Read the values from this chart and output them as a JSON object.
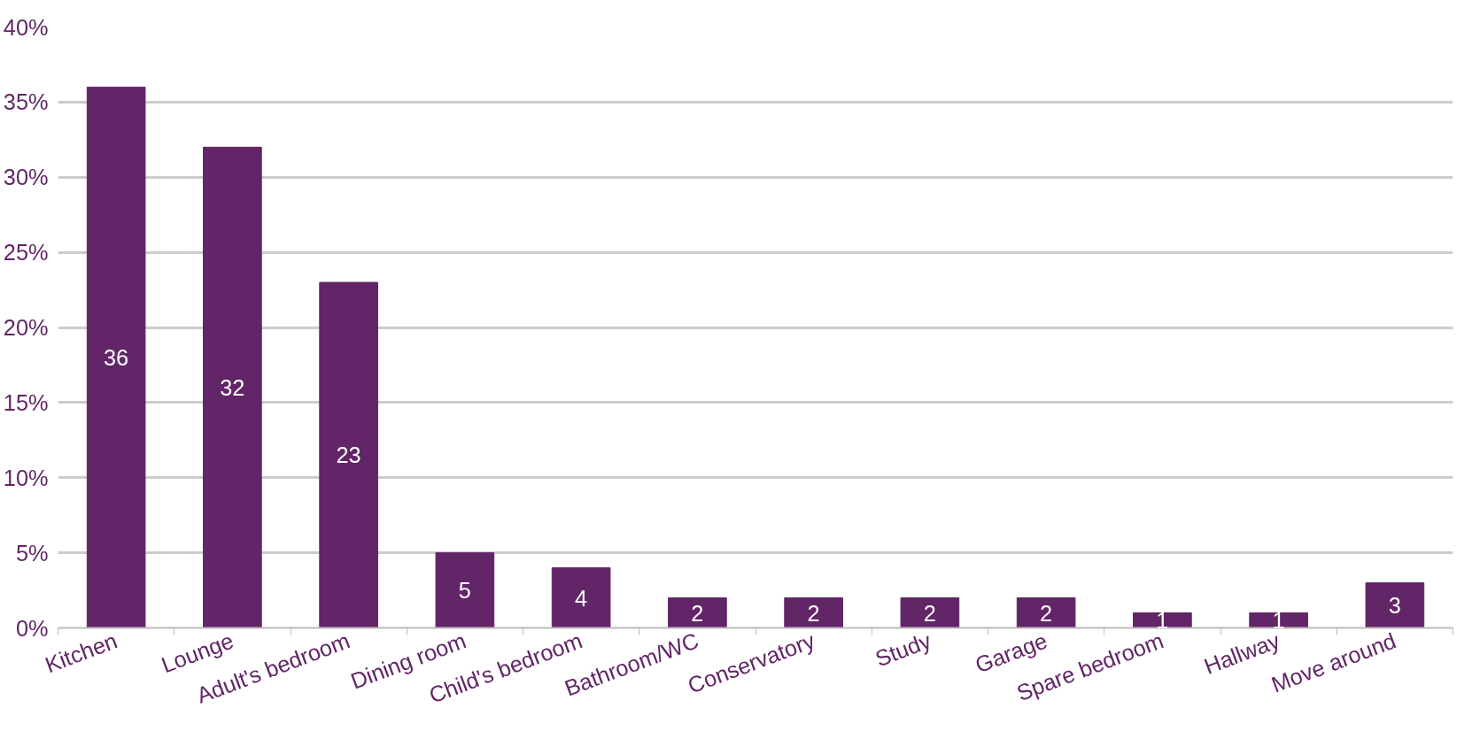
{
  "chart_data": {
    "type": "bar",
    "categories": [
      "Kitchen",
      "Lounge",
      "Adult's bedroom",
      "Dining room",
      "Child's bedroom",
      "Bathroom/WC",
      "Conservatory",
      "Study",
      "Garage",
      "Spare bedroom",
      "Hallway",
      "Move around"
    ],
    "values": [
      36,
      32,
      23,
      5,
      4,
      2,
      2,
      2,
      2,
      1,
      1,
      3
    ],
    "color": "#622567",
    "ylim": [
      0,
      40
    ],
    "yticks": [
      {
        "value": 0,
        "label": "0%"
      },
      {
        "value": 5,
        "label": "5%"
      },
      {
        "value": 10,
        "label": "10%"
      },
      {
        "value": 15,
        "label": "15%"
      },
      {
        "value": 20,
        "label": "20%"
      },
      {
        "value": 25,
        "label": "25%"
      },
      {
        "value": 30,
        "label": "30%"
      },
      {
        "value": 35,
        "label": "35%"
      },
      {
        "value": 40,
        "label": "40%"
      }
    ],
    "grid": "y",
    "data_labels": true
  }
}
